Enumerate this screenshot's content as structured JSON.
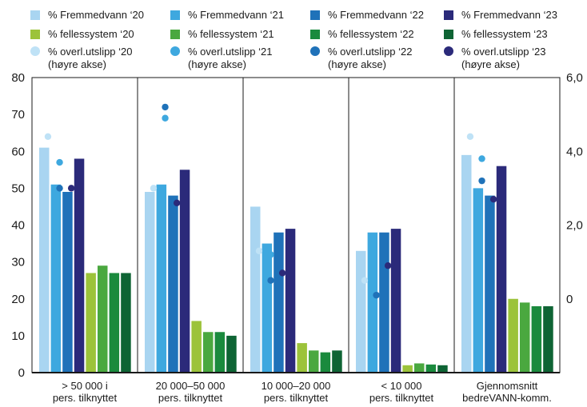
{
  "chart_data": {
    "type": "bar",
    "title": "",
    "xlabel": "",
    "ylabel": "",
    "ylim": [
      0,
      80
    ],
    "y_ticks": [
      "0",
      "10",
      "20",
      "30",
      "40",
      "50",
      "60",
      "70",
      "80"
    ],
    "y2lim": [
      -2.0,
      6.0
    ],
    "y2_ticks": [
      "0",
      "2,0",
      "4,0",
      "6,0"
    ],
    "categories": [
      [
        "> 50 000 i",
        "pers. tilknyttet"
      ],
      [
        "20 000–50 000",
        "pers. tilknyttet"
      ],
      [
        "10 000–20 000",
        "pers. tilknyttet"
      ],
      [
        "< 10 000",
        "pers. tilknyttet"
      ],
      [
        "Gjennomsnitt",
        "bedreVANN-komm."
      ]
    ],
    "bar_series": [
      {
        "name": "% Fremmedvann ‘20",
        "color": "#a9d5f1",
        "values": [
          61,
          49,
          45,
          33,
          59
        ]
      },
      {
        "name": "% Fremmedvann ‘21",
        "color": "#3ea8df",
        "values": [
          51,
          51,
          35,
          38,
          50
        ]
      },
      {
        "name": "% Fremmedvann ‘22",
        "color": "#1f72b9",
        "values": [
          49,
          48,
          38,
          38,
          48
        ]
      },
      {
        "name": "% Fremmedvann ‘23",
        "color": "#2b2a7a",
        "values": [
          58,
          55,
          39,
          39,
          56
        ]
      },
      {
        "name": "% fellessystem ‘20",
        "color": "#9cc33a",
        "values": [
          27,
          14,
          8,
          2,
          20
        ]
      },
      {
        "name": "% fellessystem ‘21",
        "color": "#4aa83f",
        "values": [
          29,
          11,
          6,
          2.5,
          19
        ]
      },
      {
        "name": "% fellessystem ‘22",
        "color": "#1a8a3d",
        "values": [
          27,
          11,
          5.5,
          2.2,
          18
        ]
      },
      {
        "name": "% fellessystem ‘23",
        "color": "#0e6434",
        "values": [
          27,
          10,
          6,
          2,
          18
        ]
      }
    ],
    "dot_series": [
      {
        "name": "% overl.utslipp ‘20",
        "note": "(høyre akse)",
        "color": "#bfe2f6",
        "values": [
          4.4,
          3.0,
          1.3,
          0.5,
          4.4
        ]
      },
      {
        "name": "% overl.utslipp ‘21",
        "note": "(høyre akse)",
        "color": "#3ea8df",
        "values": [
          3.7,
          4.9,
          1.2,
          0.1,
          3.8
        ]
      },
      {
        "name": "% overl.utslipp ‘22",
        "note": "(høyre akse)",
        "color": "#1f72b9",
        "values": [
          3.0,
          5.2,
          0.5,
          0.1,
          3.2
        ]
      },
      {
        "name": "% overl.utslipp ‘23",
        "note": "(høyre akse)",
        "color": "#2b2a7a",
        "values": [
          3.0,
          2.6,
          0.7,
          0.9,
          2.7
        ]
      }
    ],
    "grid": false,
    "legend_position": "top"
  }
}
